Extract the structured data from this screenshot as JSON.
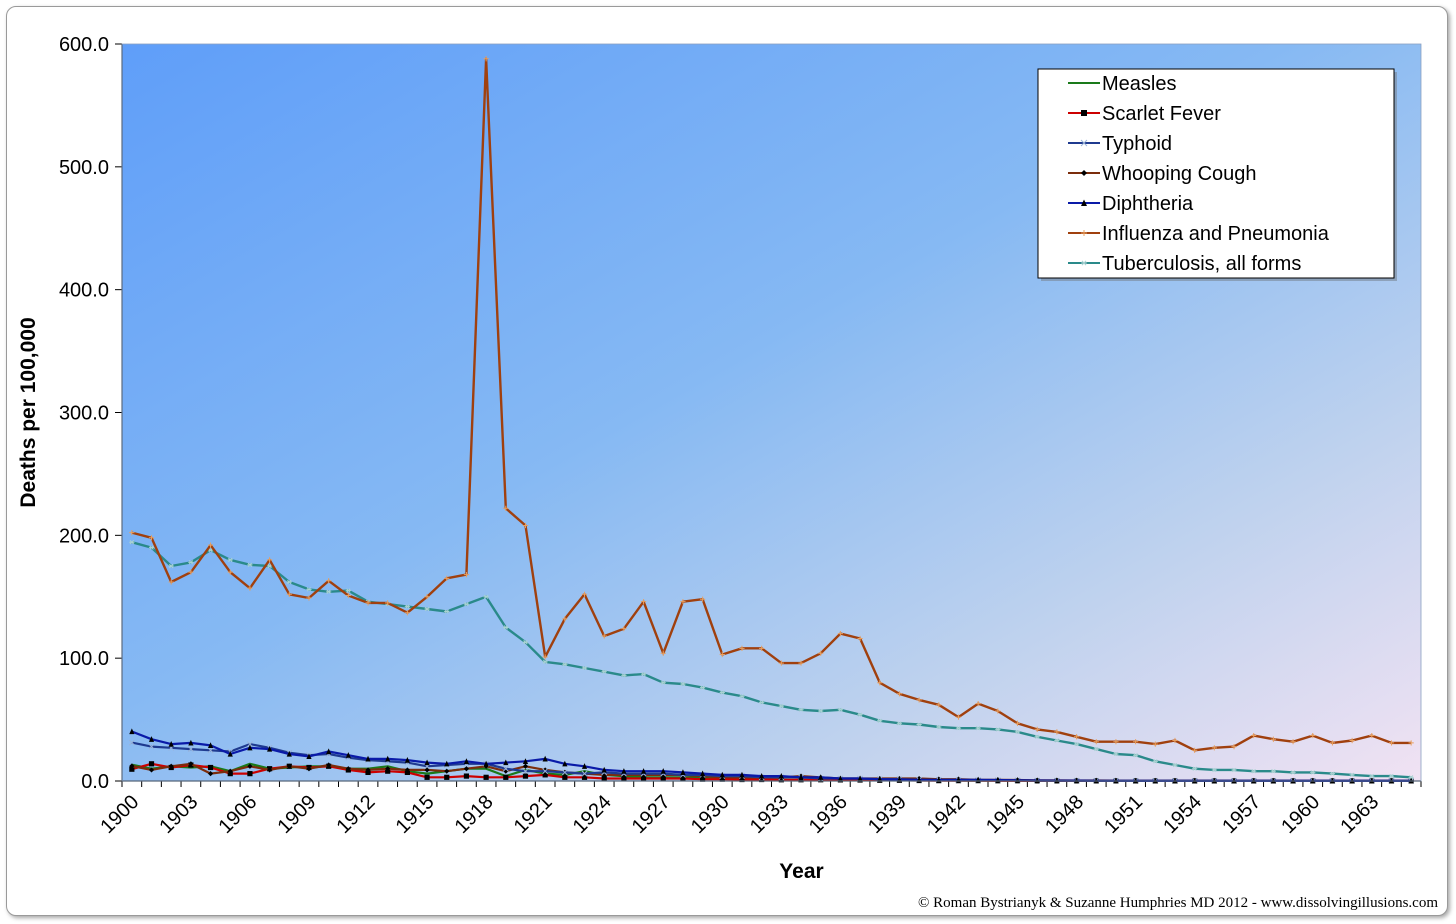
{
  "chart_data": {
    "type": "line",
    "title": "",
    "xlabel": "Year",
    "ylabel": "Deaths per 100,000",
    "ylim": [
      0,
      600
    ],
    "yticks": [
      "0.0",
      "100.0",
      "200.0",
      "300.0",
      "400.0",
      "500.0",
      "600.0"
    ],
    "xticks": [
      "1900",
      "1903",
      "1906",
      "1909",
      "1912",
      "1915",
      "1918",
      "1921",
      "1924",
      "1927",
      "1930",
      "1933",
      "1936",
      "1939",
      "1942",
      "1945",
      "1948",
      "1951",
      "1954",
      "1957",
      "1960",
      "1963"
    ],
    "x_start": 1900,
    "x_end": 1965,
    "grid": false,
    "legend_position": "top-right",
    "credit": "© Roman Bystrianyk & Suzanne Humphries MD 2012 - www.dissolvingillusions.com",
    "series": [
      {
        "name": "Measles",
        "color": "#1a7a1a",
        "marker": "none",
        "values": [
          13.3,
          10,
          12,
          11,
          12,
          8,
          14,
          10,
          11,
          12,
          12,
          10,
          10,
          12,
          8,
          6,
          8,
          10,
          10,
          4,
          9,
          6,
          5,
          8,
          5,
          4,
          3,
          3,
          3,
          3,
          2,
          2,
          2,
          1,
          1,
          1,
          1,
          0.9,
          0.8,
          0.5,
          0.6,
          0.6,
          0.4,
          0.3,
          0.4,
          0.3,
          0.2,
          0.2,
          0.3,
          0.2,
          0.2,
          0.2,
          0.2,
          0.3,
          0.2,
          0.3,
          0.2,
          0.2,
          0.2,
          0.2,
          0.2,
          0.2,
          0.2,
          0.2,
          0.1,
          0.1
        ]
      },
      {
        "name": "Scarlet Fever",
        "color": "#cc0000",
        "marker": "square",
        "values": [
          9.6,
          14,
          11,
          13,
          11,
          6,
          6,
          10,
          12,
          11,
          12,
          9,
          7,
          8,
          7,
          3,
          3,
          4,
          3,
          3,
          4,
          5,
          3,
          3,
          2,
          2,
          2,
          2,
          2,
          1.5,
          1.5,
          1.2,
          1.2,
          1,
          1,
          1,
          0.9,
          0.8,
          0.6,
          0.6,
          0.4,
          0.3,
          0.3,
          0.3,
          0.2,
          0.2,
          0.1,
          0.1,
          0.1,
          0.1,
          0.1,
          0.1,
          0.1,
          0.1,
          0.1,
          0.1,
          0.1,
          0.1,
          0.1,
          0.1,
          0.1,
          0.1,
          0.1,
          0.1,
          0.1,
          0.1
        ]
      },
      {
        "name": "Typhoid",
        "color": "#1f3a8f",
        "marker": "x",
        "values": [
          31.3,
          28,
          27,
          26,
          25,
          24,
          30,
          27,
          23,
          21,
          22,
          19,
          17,
          16,
          15,
          12,
          13,
          14,
          14,
          10,
          8,
          8,
          7,
          6,
          7,
          6,
          6,
          6,
          5,
          5,
          4,
          4,
          3,
          3,
          3,
          2,
          2,
          2,
          1.5,
          1.5,
          1,
          1,
          0.8,
          0.8,
          0.6,
          0.5,
          0.3,
          0.3,
          0.3,
          0.2,
          0.2,
          0.1,
          0.1,
          0.1,
          0.1,
          0.1,
          0.1,
          0.1,
          0.1,
          0.1,
          0.1,
          0.1,
          0.1,
          0.1,
          0.1,
          0.1
        ]
      },
      {
        "name": "Whooping Cough",
        "color": "#7b2d0c",
        "marker": "diamond",
        "values": [
          12.2,
          9,
          12,
          14,
          6,
          8,
          12,
          9,
          12,
          10,
          13,
          10,
          9,
          10,
          9,
          9,
          8,
          10,
          12,
          8,
          12,
          9,
          7,
          6,
          5,
          5,
          5,
          5,
          5,
          4,
          3,
          3,
          3,
          3,
          4,
          3,
          2,
          2,
          2,
          2,
          2,
          1.5,
          1.5,
          1,
          1,
          0.8,
          0.6,
          0.6,
          0.4,
          0.4,
          0.3,
          0.2,
          0.2,
          0.2,
          0.2,
          0.2,
          0.1,
          0.1,
          0.1,
          0.1,
          0.1,
          0.1,
          0.1,
          0.1,
          0.1,
          0.1
        ]
      },
      {
        "name": "Diphtheria",
        "color": "#0a1aa8",
        "marker": "triangle",
        "values": [
          40.3,
          34,
          30,
          31,
          29,
          22,
          27,
          26,
          22,
          20,
          24,
          21,
          18,
          18,
          17,
          15,
          14,
          16,
          14,
          15,
          16,
          18,
          14,
          12,
          9,
          8,
          8,
          8,
          7,
          6,
          5,
          5,
          4,
          4,
          3,
          3,
          2,
          2,
          1.5,
          1.2,
          1,
          0.8,
          1,
          1,
          0.8,
          0.6,
          0.4,
          0.3,
          0.3,
          0.2,
          0.2,
          0.1,
          0.1,
          0.1,
          0.1,
          0.1,
          0.1,
          0.1,
          0.1,
          0.1,
          0.1,
          0.1,
          0.1,
          0.1,
          0.1,
          0.1
        ]
      },
      {
        "name": "Influenza and Pneumonia",
        "color": "#a0400e",
        "marker": "plus",
        "values": [
          202.2,
          198,
          162,
          170,
          192,
          170,
          157,
          180,
          152,
          149,
          163,
          151,
          145,
          145,
          137,
          150,
          165,
          168,
          588,
          222,
          208,
          101,
          132,
          152,
          118,
          124,
          146,
          104,
          146,
          148,
          103,
          108,
          108,
          96,
          96,
          104,
          120,
          116,
          80,
          71,
          66,
          62,
          52,
          63,
          57,
          47,
          42,
          40,
          36,
          32,
          32,
          32,
          30,
          33,
          25,
          27,
          28,
          37,
          34,
          32,
          37,
          31,
          33,
          37,
          31,
          31
        ]
      },
      {
        "name": "Tuberculosis, all forms",
        "color": "#2a8a8a",
        "marker": "asterisk",
        "values": [
          194.4,
          190,
          175,
          178,
          188,
          180,
          176,
          175,
          162,
          156,
          154,
          155,
          146,
          144,
          142,
          140,
          138,
          144,
          150,
          125,
          113,
          97,
          95,
          92,
          89,
          86,
          87,
          80,
          79,
          76,
          72,
          69,
          64,
          61,
          58,
          57,
          58,
          54,
          49,
          47,
          46,
          44,
          43,
          43,
          42,
          40,
          36,
          33,
          30,
          26,
          22,
          21,
          16,
          13,
          10,
          9,
          9,
          8,
          8,
          7,
          7,
          6,
          5,
          4,
          4,
          3
        ]
      }
    ]
  }
}
